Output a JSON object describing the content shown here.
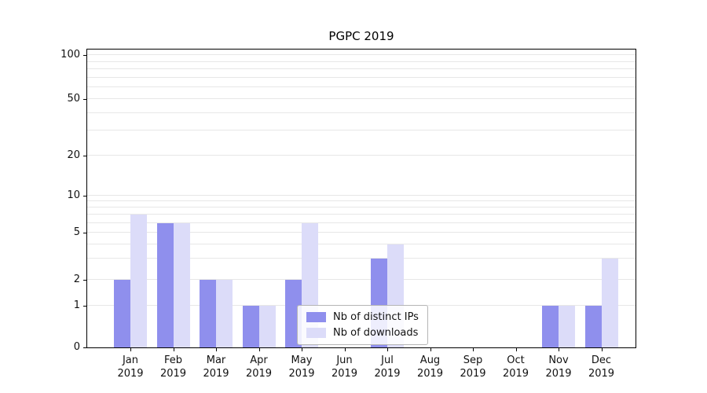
{
  "chart_data": {
    "type": "bar",
    "title": "PGPC 2019",
    "categories": [
      "Jan 2019",
      "Feb 2019",
      "Mar 2019",
      "Apr 2019",
      "May 2019",
      "Jun 2019",
      "Jul 2019",
      "Aug 2019",
      "Sep 2019",
      "Oct 2019",
      "Nov 2019",
      "Dec 2019"
    ],
    "x_tick_line1": [
      "Jan",
      "Feb",
      "Mar",
      "Apr",
      "May",
      "Jun",
      "Jul",
      "Aug",
      "Sep",
      "Oct",
      "Nov",
      "Dec"
    ],
    "x_tick_line2": "2019",
    "series": [
      {
        "name": "Nb of distinct IPs",
        "color": "#8f8fed",
        "values": [
          2,
          6,
          2,
          1,
          2,
          0,
          3,
          0,
          0,
          0,
          1,
          1
        ]
      },
      {
        "name": "Nb of downloads",
        "color": "#dcdcf9",
        "values": [
          7,
          6,
          2,
          1,
          6,
          0,
          4,
          0,
          0,
          0,
          1,
          3
        ]
      }
    ],
    "yscale": "symlog",
    "ylim": [
      0,
      115
    ],
    "y_ticks": [
      0,
      1,
      2,
      5,
      10,
      20,
      50,
      100
    ],
    "y_minor_gridlines": [
      1,
      2,
      3,
      4,
      5,
      6,
      7,
      8,
      9,
      10,
      20,
      30,
      40,
      50,
      60,
      70,
      80,
      90,
      100
    ],
    "grid": "horizontal",
    "legend_position": "lower center",
    "xlabel": "",
    "ylabel": ""
  }
}
